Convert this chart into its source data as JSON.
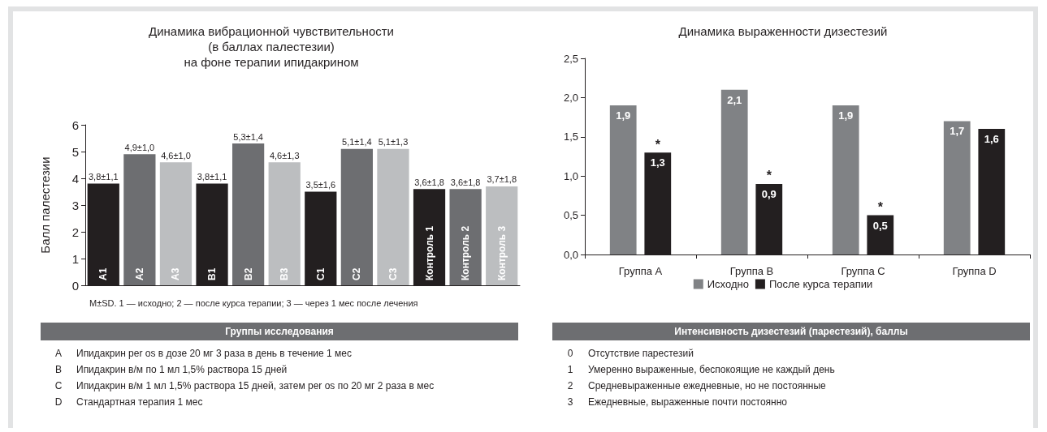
{
  "chart_data": [
    {
      "type": "bar",
      "title": "Динамика вибрационной чувствительности\n(в баллах палестезии)\nна фоне терапии ипидакрином",
      "ylabel": "Балл палестезии",
      "categories": [
        "A1",
        "A2",
        "A3",
        "B1",
        "B2",
        "B3",
        "C1",
        "C2",
        "C3",
        "Контроль 1",
        "Контроль 2",
        "Контроль 3"
      ],
      "values": [
        3.8,
        4.9,
        4.6,
        3.8,
        5.3,
        4.6,
        3.5,
        5.1,
        5.1,
        3.6,
        3.6,
        3.7
      ],
      "value_labels": [
        "3,8±1,1",
        "4,9±1,0",
        "4,6±1,0",
        "3,8±1,1",
        "5,3±1,4",
        "4,6±1,3",
        "3,5±1,6",
        "5,1±1,4",
        "5,1±1,3",
        "3,6±1,8",
        "3,6±1,8",
        "3,7±1,8"
      ],
      "colors": [
        "#231f20",
        "#6d6e71",
        "#bcbec0",
        "#231f20",
        "#6d6e71",
        "#bcbec0",
        "#231f20",
        "#6d6e71",
        "#bcbec0",
        "#231f20",
        "#6d6e71",
        "#bcbec0"
      ],
      "ylim": [
        0,
        6
      ],
      "yticks": [
        0,
        1,
        2,
        3,
        4,
        5,
        6
      ],
      "grid": false,
      "legend": false,
      "annotations": [
        "M±SD. 1 — исходно; 2 — после курса терапии; 3 — через 1 мес после лечения",
        "Группы исследования",
        "A Ипидакрин per os в дозе 20 мг 3 раза в день в течение 1 мес",
        "B Ипидакрин в/м по 1 мл 1,5% раствора 15 дней",
        "C Ипидакрин в/м 1 мл 1,5% раствора 15 дней, затем per os по 20 мг 2 раза в мес",
        "D Стандартная терапия 1 мес"
      ]
    },
    {
      "type": "bar",
      "title": "Динамика выраженности дизестезий",
      "categories": [
        "Группа A",
        "Группа B",
        "Группа C",
        "Группа D"
      ],
      "series": [
        {
          "name": "Исходно",
          "color": "#808285",
          "values": [
            1.9,
            2.1,
            1.9,
            1.7
          ],
          "value_labels": [
            "1,9",
            "2,1",
            "1,9",
            "1,7"
          ]
        },
        {
          "name": "После курса терапии",
          "color": "#231f20",
          "values": [
            1.3,
            0.9,
            0.5,
            1.6
          ],
          "value_labels": [
            "1,3",
            "0,9",
            "0,5",
            "1,6"
          ]
        }
      ],
      "ylim": [
        0,
        2.5
      ],
      "yticks": [
        {
          "value": 0,
          "label": "0,0"
        },
        {
          "value": 0.5,
          "label": "0,5"
        },
        {
          "value": 1,
          "label": "1,0"
        },
        {
          "value": 1.5,
          "label": "1,5"
        },
        {
          "value": 2,
          "label": "2,0"
        },
        {
          "value": 2.5,
          "label": "2,5"
        }
      ],
      "grid": false,
      "legend": "bottom",
      "annotations": [
        {
          "text": "*",
          "x": "Группа A",
          "y": 1.3
        },
        {
          "text": "*",
          "x": "Группа B",
          "y": 0.9
        },
        {
          "text": "*",
          "x": "Группа C",
          "y": 0.5
        },
        "Интенсивность дизестезий (парестезий), баллы",
        "0 Отсутствие парестезий",
        "1 Умеренно выраженные,  беспокоящие не каждый день",
        "2 Средневыраженные ежедневные, но не постоянные",
        "3 Ежедневные, выраженные почти постоянно"
      ]
    }
  ]
}
